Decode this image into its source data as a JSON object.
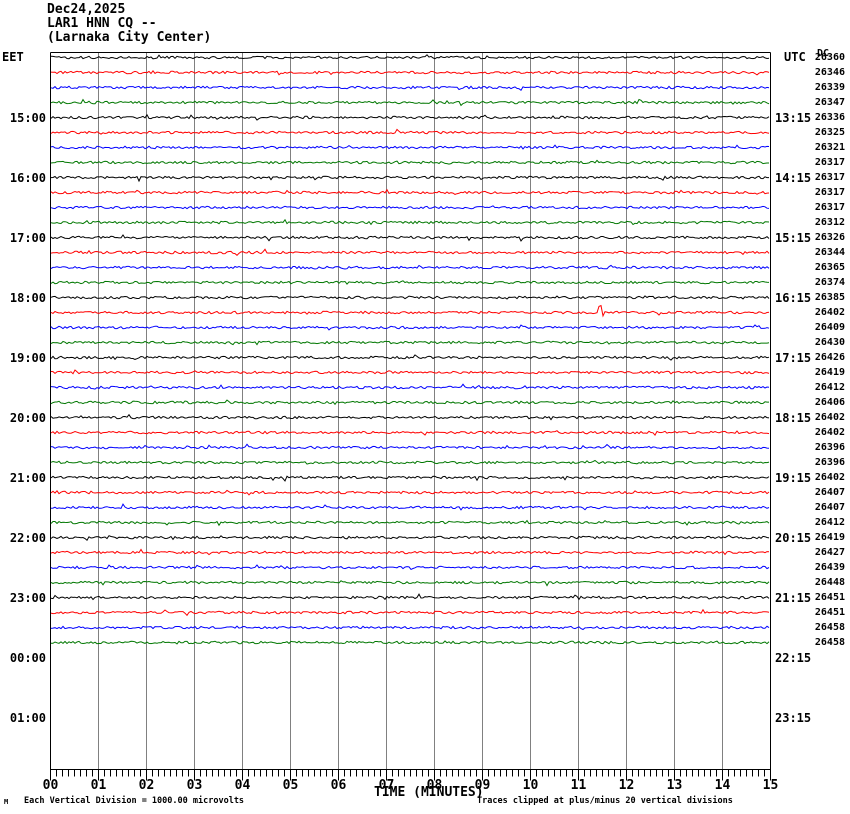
{
  "chart_data": {
    "type": "line",
    "subtype": "helicorder seismogram, one 15-minute trace per row",
    "date": "Dec24,2025",
    "title": "LAR1 HNN CQ --",
    "station_description": "(Larnaka City Center)",
    "xlabel": "TIME (MINUTES)",
    "x_range_minutes": [
      0,
      15
    ],
    "x_tick_labels": [
      "00",
      "01",
      "02",
      "03",
      "04",
      "05",
      "06",
      "07",
      "08",
      "09",
      "10",
      "11",
      "12",
      "13",
      "14",
      "15"
    ],
    "grid": "vertical gridline at each minute",
    "left_axis": {
      "timezone_label": "EET",
      "labels": [
        {
          "row": 4,
          "text": "15:00"
        },
        {
          "row": 8,
          "text": "16:00"
        },
        {
          "row": 12,
          "text": "17:00"
        },
        {
          "row": 16,
          "text": "18:00"
        },
        {
          "row": 20,
          "text": "19:00"
        },
        {
          "row": 24,
          "text": "20:00"
        },
        {
          "row": 28,
          "text": "21:00"
        },
        {
          "row": 32,
          "text": "22:00"
        },
        {
          "row": 36,
          "text": "23:00"
        },
        {
          "row": 40,
          "text": "00:00"
        },
        {
          "row": 44,
          "text": "01:00"
        }
      ]
    },
    "right_axis": {
      "timezone_label": "UTC",
      "dc_header": "DC",
      "labels": [
        {
          "row": 4,
          "text": "13:15"
        },
        {
          "row": 8,
          "text": "14:15"
        },
        {
          "row": 12,
          "text": "15:15"
        },
        {
          "row": 16,
          "text": "16:15"
        },
        {
          "row": 20,
          "text": "17:15"
        },
        {
          "row": 24,
          "text": "18:15"
        },
        {
          "row": 28,
          "text": "19:15"
        },
        {
          "row": 32,
          "text": "20:15"
        },
        {
          "row": 36,
          "text": "21:15"
        },
        {
          "row": 40,
          "text": "22:15"
        },
        {
          "row": 44,
          "text": "23:15"
        }
      ]
    },
    "rows": [
      {
        "color": "black",
        "dc": 26360
      },
      {
        "color": "red",
        "dc": 26346
      },
      {
        "color": "blue",
        "dc": 26339
      },
      {
        "color": "green",
        "dc": 26347
      },
      {
        "color": "black",
        "dc": 26336
      },
      {
        "color": "red",
        "dc": 26325
      },
      {
        "color": "blue",
        "dc": 26321
      },
      {
        "color": "green",
        "dc": 26317
      },
      {
        "color": "black",
        "dc": 26317
      },
      {
        "color": "red",
        "dc": 26317
      },
      {
        "color": "blue",
        "dc": 26317
      },
      {
        "color": "green",
        "dc": 26312
      },
      {
        "color": "black",
        "dc": 26326
      },
      {
        "color": "red",
        "dc": 26344
      },
      {
        "color": "blue",
        "dc": 26365
      },
      {
        "color": "green",
        "dc": 26374
      },
      {
        "color": "black",
        "dc": 26385
      },
      {
        "color": "red",
        "dc": 26402
      },
      {
        "color": "blue",
        "dc": 26409
      },
      {
        "color": "green",
        "dc": 26430
      },
      {
        "color": "black",
        "dc": 26426
      },
      {
        "color": "red",
        "dc": 26419
      },
      {
        "color": "blue",
        "dc": 26412
      },
      {
        "color": "green",
        "dc": 26406
      },
      {
        "color": "black",
        "dc": 26402
      },
      {
        "color": "red",
        "dc": 26402
      },
      {
        "color": "blue",
        "dc": 26396
      },
      {
        "color": "green",
        "dc": 26396
      },
      {
        "color": "black",
        "dc": 26402
      },
      {
        "color": "red",
        "dc": 26407
      },
      {
        "color": "blue",
        "dc": 26407
      },
      {
        "color": "green",
        "dc": 26412
      },
      {
        "color": "black",
        "dc": 26419
      },
      {
        "color": "red",
        "dc": 26427
      },
      {
        "color": "blue",
        "dc": 26439
      },
      {
        "color": "green",
        "dc": 26448
      },
      {
        "color": "black",
        "dc": 26451
      },
      {
        "color": "red",
        "dc": 26451
      },
      {
        "color": "blue",
        "dc": 26458
      },
      {
        "color": "green",
        "dc": 26458
      }
    ],
    "colors": {
      "black": "#000000",
      "red": "#ff0000",
      "blue": "#0000ff",
      "green": "#007700",
      "grid": "#808080",
      "background": "#ffffff"
    },
    "spike": {
      "row": 17,
      "minute": 11.45
    },
    "annotations": {
      "scale_note": "Each Vertical Division = 1000.00 microvolts",
      "clip_note": "Traces clipped at plus/minus 20 vertical divisions",
      "watermark": "M"
    }
  }
}
